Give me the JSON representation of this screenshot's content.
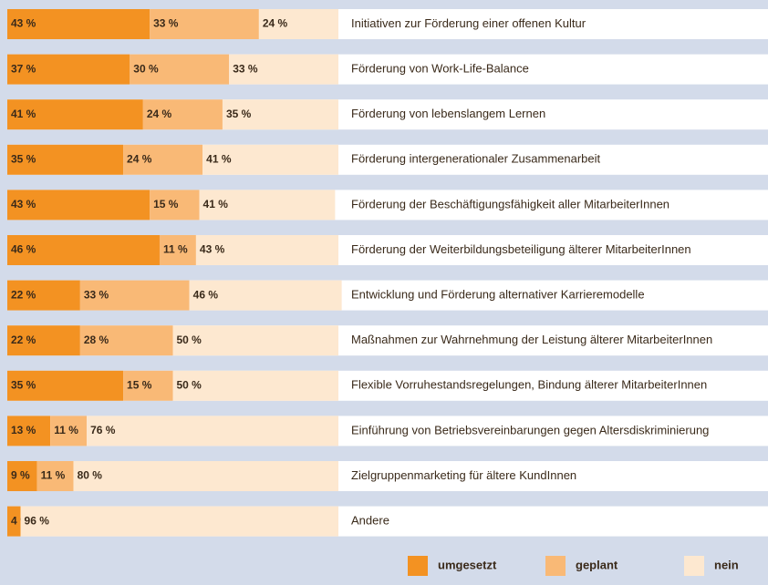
{
  "chart_data": {
    "type": "stacked-bar-horizontal",
    "categories": [
      "Initiativen zur Förderung einer offenen Kultur",
      "Förderung von Work-Life-Balance",
      "Förderung von lebenslangem Lernen",
      "Förderung intergenerationaler Zusammenarbeit",
      "Förderung der Beschäftigungsfähigkeit aller MitarbeiterInnen",
      "Förderung der Weiterbildungsbeteiligung älterer MitarbeiterInnen",
      "Entwicklung und Förderung alternativer Karrieremodelle",
      "Maßnahmen zur Wahrnehmung der Leistung älterer MitarbeiterInnen",
      "Flexible Vorruhestandsregelungen, Bindung älterer MitarbeiterInnen",
      "Einführung von Betriebsvereinbarungen gegen Altersdiskriminierung",
      "Zielgruppenmarketing für ältere KundInnen",
      "Andere"
    ],
    "series": [
      {
        "name": "umgesetzt",
        "color": "#f39222",
        "values": [
          43,
          37,
          41,
          35,
          43,
          46,
          22,
          22,
          35,
          13,
          9,
          4
        ],
        "value_labels": [
          "43 %",
          "37 %",
          "41 %",
          "35 %",
          "43 %",
          "46 %",
          "22 %",
          "22 %",
          "35 %",
          "13 %",
          "9 %",
          "4 %"
        ]
      },
      {
        "name": "geplant",
        "color": "#f9b976",
        "values": [
          33,
          30,
          24,
          24,
          15,
          11,
          33,
          28,
          15,
          11,
          11,
          null
        ],
        "value_labels": [
          "33 %",
          "30 %",
          "24 %",
          "24 %",
          "15 %",
          "11 %",
          "33 %",
          "28 %",
          "15 %",
          "11 %",
          "11 %",
          null
        ]
      },
      {
        "name": "nein",
        "color": "#fde8d0",
        "values": [
          24,
          33,
          35,
          41,
          41,
          43,
          46,
          50,
          50,
          76,
          80,
          96
        ],
        "value_labels": [
          "24 %",
          "33 %",
          "35 %",
          "41 %",
          "41 %",
          "43 %",
          "46 %",
          "50 %",
          "50 %",
          "76 %",
          "80 %",
          "96 %"
        ]
      }
    ],
    "xlim": [
      0,
      100
    ],
    "legend": "bottom-right"
  }
}
